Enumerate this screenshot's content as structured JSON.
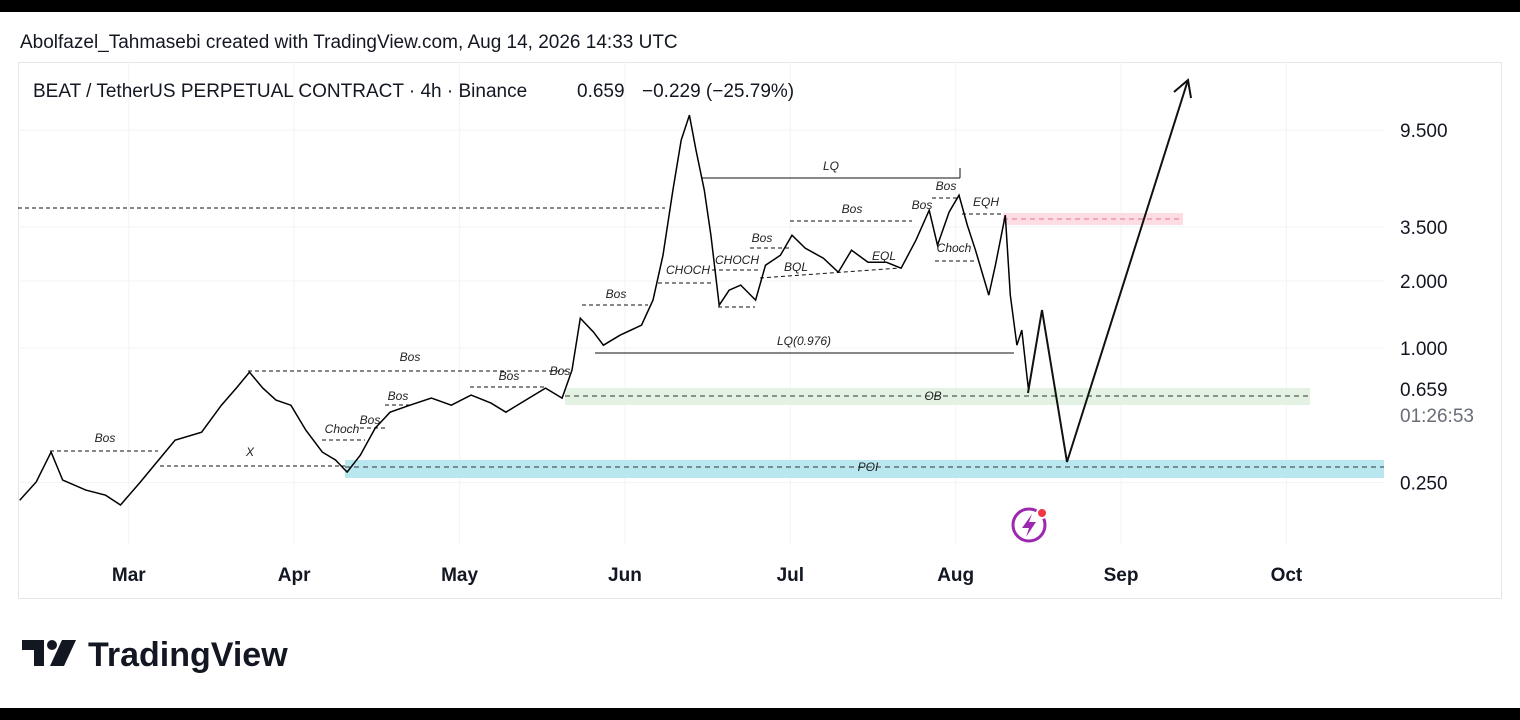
{
  "header": {
    "attribution": "Abolfazel_Tahmasebi created with TradingView.com, Aug 14, 2026 14:33 UTC",
    "logo": "TradingView"
  },
  "chart_data": {
    "type": "line",
    "title": "BEAT / TetherUS PERPETUAL CONTRACT · 4h · Binance",
    "last_price": 0.659,
    "change_label": "−0.229 (−25.79%)",
    "countdown": "01:26:53",
    "log_scale": true,
    "grid": true,
    "color": "#000000",
    "xlim": [
      2.33,
      10.59
    ],
    "xticks": [
      {
        "value": 3,
        "label": "Mar"
      },
      {
        "value": 4,
        "label": "Apr"
      },
      {
        "value": 5,
        "label": "May"
      },
      {
        "value": 6,
        "label": "Jun"
      },
      {
        "value": 7,
        "label": "Jul"
      },
      {
        "value": 8,
        "label": "Aug"
      },
      {
        "value": 9,
        "label": "Sep"
      },
      {
        "value": 10,
        "label": "Oct"
      }
    ],
    "ylim": [
      0.131,
      19.2
    ],
    "yticks": [
      {
        "value": 0.25,
        "label": "0.250"
      },
      {
        "value": 1,
        "label": "1.000"
      },
      {
        "value": 2,
        "label": "2.000"
      },
      {
        "value": 3.5,
        "label": "3.500"
      },
      {
        "value": 9.5,
        "label": "9.500"
      }
    ],
    "x": [
      2.34,
      2.44,
      2.53,
      2.6,
      2.74,
      2.86,
      2.95,
      3.07,
      3.18,
      3.28,
      3.44,
      3.56,
      3.65,
      3.73,
      3.81,
      3.89,
      3.98,
      4.07,
      4.17,
      4.25,
      4.32,
      4.4,
      4.49,
      4.58,
      4.7,
      4.83,
      4.95,
      5.07,
      5.19,
      5.28,
      5.4,
      5.52,
      5.62,
      5.68,
      5.73,
      5.81,
      5.87,
      5.97,
      6.1,
      6.17,
      6.23,
      6.29,
      6.34,
      6.39,
      6.43,
      6.48,
      6.52,
      6.57,
      6.63,
      6.7,
      6.79,
      6.85,
      6.94,
      7.01,
      7.09,
      7.2,
      7.29,
      7.37,
      7.47,
      7.58,
      7.67,
      7.76,
      7.84,
      7.89,
      7.96,
      8.02,
      8.07,
      8.12,
      8.2,
      8.24,
      8.3,
      8.33,
      8.37,
      8.4,
      8.43,
      8.44
    ],
    "series": [
      {
        "values": [
          0.208,
          0.251,
          0.342,
          0.256,
          0.231,
          0.219,
          0.198,
          0.251,
          0.315,
          0.387,
          0.42,
          0.555,
          0.662,
          0.78,
          0.662,
          0.585,
          0.555,
          0.429,
          0.342,
          0.315,
          0.278,
          0.331,
          0.438,
          0.516,
          0.555,
          0.597,
          0.555,
          0.616,
          0.567,
          0.516,
          0.585,
          0.662,
          0.597,
          0.797,
          1.363,
          1.18,
          1.031,
          1.143,
          1.268,
          1.642,
          2.612,
          5.114,
          8.57,
          11.09,
          7.727,
          5.114,
          3.212,
          1.559,
          1.82,
          1.917,
          1.642,
          2.356,
          2.612,
          3.212,
          2.808,
          2.533,
          2.192,
          2.75,
          2.43,
          2.43,
          2.283,
          3.051,
          4.157,
          2.897,
          4.074,
          4.854,
          3.562,
          2.75,
          1.729,
          2.356,
          3.948,
          1.729,
          1.031,
          1.205,
          0.757,
          0.659
        ]
      }
    ],
    "annotations": [
      "Bos",
      "X",
      "Choch",
      "Bos",
      "Bos",
      "Bos",
      "Bos",
      "Bos",
      "Bos",
      "CHOCH",
      "CHOCH",
      "Bos",
      "BQL",
      "Bos",
      "EQL",
      "Bos",
      "Bos",
      "EQH",
      "Choch",
      "LQ",
      "LQ(0.976)",
      "OB",
      "POI"
    ]
  }
}
